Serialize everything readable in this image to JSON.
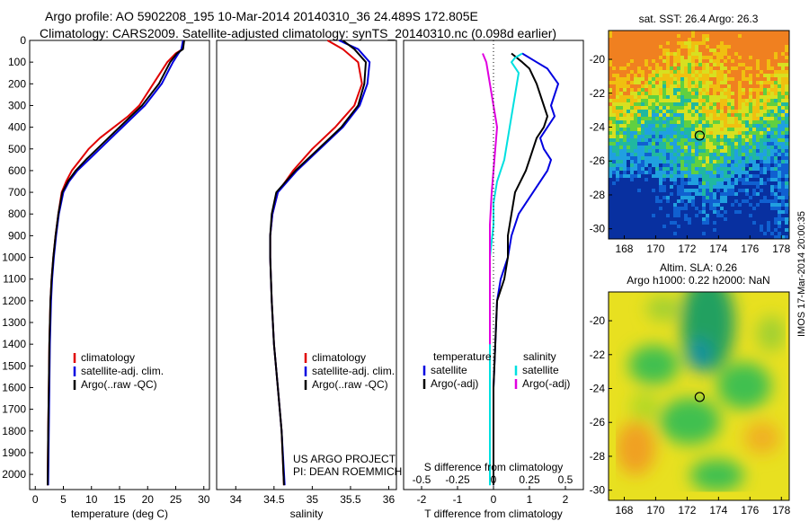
{
  "title_line1": "Argo profile: AO 5902208_195 10-Mar-2014 20140310_36 24.489S 172.805E",
  "title_line2": "Climatology: CARS2009. Satellite-adjusted climatology: synTS_20140310.nc (0.098d earlier)",
  "project_line1": "US ARGO PROJECT",
  "project_line2": "PI: DEAN ROEMMICH",
  "vertical_stamp": "IMOS 17-Mar-2014 20:00:35",
  "colors": {
    "climatology": "#e00000",
    "satellite": "#0000e0",
    "argo": "#000000",
    "sat_salinity": "#00e0e0",
    "argo_salinity": "#e000e0"
  },
  "chart_data": [
    {
      "id": "temperature",
      "type": "line",
      "xlabel": "temperature (deg C)",
      "ylabel": "",
      "xlim": [
        -1,
        31
      ],
      "ylim": [
        2070,
        0
      ],
      "xticks": [
        0,
        5,
        10,
        15,
        20,
        25,
        30
      ],
      "yticks": [
        0,
        100,
        200,
        300,
        400,
        500,
        600,
        700,
        800,
        900,
        1000,
        1100,
        1200,
        1300,
        1400,
        1500,
        1600,
        1700,
        1800,
        1900,
        2000
      ],
      "grid": false,
      "legend_position": "lower-center",
      "legend": [
        "climatology",
        "satellite-adj. clim.",
        "Argo(..raw -QC)"
      ],
      "series": [
        {
          "name": "climatology",
          "color": "#e00000",
          "x": [
            26.4,
            26.2,
            25.0,
            23.5,
            21.0,
            18.5,
            16.5,
            14.0,
            11.5,
            9.5,
            8.0,
            6.5,
            5.5,
            4.7,
            4.1,
            3.6,
            3.2,
            2.9,
            2.7,
            2.5,
            2.4,
            2.3,
            2.2
          ],
          "y": [
            0,
            40,
            60,
            100,
            200,
            300,
            350,
            400,
            450,
            500,
            550,
            600,
            650,
            700,
            800,
            900,
            1000,
            1100,
            1200,
            1400,
            1600,
            1800,
            2050
          ]
        },
        {
          "name": "satellite-adj. clim.",
          "color": "#0000e0",
          "x": [
            26.3,
            26.0,
            25.5,
            24.5,
            22.5,
            19.5,
            17.5,
            15.5,
            13.5,
            11.5,
            9.5,
            7.5,
            6.0,
            5.0,
            4.2,
            3.7,
            3.3,
            3.0,
            2.8,
            2.6,
            2.5,
            2.4,
            2.3
          ],
          "y": [
            0,
            40,
            60,
            100,
            200,
            300,
            350,
            400,
            450,
            500,
            550,
            600,
            650,
            700,
            800,
            900,
            1000,
            1100,
            1200,
            1400,
            1600,
            1800,
            2050
          ]
        },
        {
          "name": "Argo(..raw -QC)",
          "color": "#000000",
          "x": [
            26.5,
            26.3,
            25.2,
            24.0,
            22.0,
            19.0,
            17.0,
            15.0,
            13.0,
            11.0,
            9.0,
            7.2,
            5.8,
            4.8,
            4.1,
            3.6,
            3.2,
            2.9,
            2.7,
            2.5,
            2.4,
            2.3,
            2.2
          ],
          "y": [
            0,
            40,
            60,
            100,
            200,
            300,
            350,
            400,
            450,
            500,
            550,
            600,
            650,
            700,
            800,
            900,
            1000,
            1100,
            1200,
            1400,
            1600,
            1800,
            2050
          ]
        }
      ]
    },
    {
      "id": "salinity",
      "type": "line",
      "xlabel": "salinity",
      "ylabel": "",
      "xlim": [
        33.75,
        36.1
      ],
      "ylim": [
        2070,
        0
      ],
      "xticks": [
        34,
        34.5,
        35,
        35.5,
        36
      ],
      "yticks": [],
      "grid": false,
      "legend_position": "lower-center",
      "legend": [
        "climatology",
        "satellite-adj. clim.",
        "Argo(..raw -QC)"
      ],
      "series": [
        {
          "name": "climatology",
          "color": "#e00000",
          "x": [
            35.2,
            35.4,
            35.6,
            35.65,
            35.55,
            35.3,
            35.0,
            34.75,
            34.55,
            34.48,
            34.45,
            34.45,
            34.47,
            34.5,
            34.55,
            34.6,
            34.63
          ],
          "y": [
            0,
            40,
            100,
            200,
            300,
            400,
            500,
            600,
            700,
            800,
            900,
            1000,
            1200,
            1400,
            1600,
            1800,
            2050
          ]
        },
        {
          "name": "satellite-adj. clim.",
          "color": "#0000e0",
          "x": [
            35.35,
            35.6,
            35.75,
            35.72,
            35.62,
            35.4,
            35.1,
            34.8,
            34.55,
            34.48,
            34.45,
            34.45,
            34.47,
            34.5,
            34.55,
            34.6,
            34.64
          ],
          "y": [
            0,
            40,
            100,
            200,
            300,
            400,
            500,
            600,
            700,
            800,
            900,
            1000,
            1200,
            1400,
            1600,
            1800,
            2050
          ]
        },
        {
          "name": "Argo(..raw -QC)",
          "color": "#000000",
          "x": [
            35.4,
            35.55,
            35.7,
            35.68,
            35.6,
            35.38,
            35.08,
            34.78,
            34.53,
            34.47,
            34.45,
            34.45,
            34.47,
            34.5,
            34.55,
            34.6,
            34.63
          ],
          "y": [
            0,
            40,
            100,
            200,
            300,
            400,
            500,
            600,
            700,
            800,
            900,
            1000,
            1200,
            1400,
            1600,
            1800,
            2050
          ]
        }
      ]
    },
    {
      "id": "difference",
      "type": "line",
      "xlabel": "T difference from climatology",
      "xlabel_top": "S difference from climatology",
      "ylabel": "",
      "xlim": [
        -2.5,
        2.5
      ],
      "ylim": [
        2070,
        0
      ],
      "xticks": [
        -2,
        -1,
        0,
        1,
        2
      ],
      "xticks_top": [
        "-0.5",
        "-0.25",
        "0",
        "0.25",
        "0.5"
      ],
      "yticks": [],
      "grid": false,
      "legend_position": "lower-center",
      "legend_headers": [
        "temperature",
        "salinity"
      ],
      "legend": [
        "satellite",
        "Argo(-adj)",
        "satellite",
        "Argo(-adj)"
      ],
      "series": [
        {
          "name": "satellite",
          "group": "temperature",
          "color": "#0000e0",
          "x": [
            0.8,
            1.2,
            1.5,
            1.8,
            1.6,
            1.7,
            1.5,
            1.3,
            1.4,
            1.6,
            1.5,
            1.1,
            0.7,
            0.5,
            0.4,
            0.2,
            0.1,
            0.05,
            0.0,
            0.0
          ],
          "y": [
            60,
            100,
            130,
            200,
            300,
            350,
            400,
            450,
            500,
            550,
            600,
            700,
            800,
            900,
            1000,
            1100,
            1200,
            1400,
            1600,
            2050
          ]
        },
        {
          "name": "Argo(-adj)",
          "group": "temperature",
          "color": "#000000",
          "x": [
            0.5,
            0.8,
            1.0,
            1.2,
            1.4,
            1.5,
            1.4,
            1.2,
            1.1,
            1.0,
            0.9,
            0.6,
            0.5,
            0.4,
            0.4,
            0.3,
            0.1,
            0.05,
            0.0,
            0.0
          ],
          "y": [
            60,
            100,
            130,
            200,
            300,
            350,
            400,
            450,
            500,
            550,
            600,
            700,
            800,
            900,
            1000,
            1100,
            1200,
            1400,
            1600,
            2050
          ]
        },
        {
          "name": "satellite",
          "group": "salinity",
          "color": "#00e0e0",
          "x": [
            0.8,
            0.6,
            0.5,
            0.7,
            0.6,
            0.5,
            0.4,
            0.3,
            0.1,
            0.0,
            0.0,
            -0.1,
            -0.1,
            -0.1,
            -0.1
          ],
          "y": [
            60,
            80,
            100,
            150,
            250,
            350,
            450,
            550,
            650,
            750,
            850,
            1000,
            1200,
            1600,
            2050
          ]
        },
        {
          "name": "Argo(-adj)",
          "group": "salinity",
          "color": "#e000e0",
          "x": [
            -0.3,
            -0.2,
            -0.1,
            0.0,
            0.1,
            0.05,
            0.0,
            -0.05,
            -0.1,
            -0.1,
            -0.1,
            -0.1
          ],
          "y": [
            60,
            100,
            200,
            300,
            400,
            500,
            600,
            700,
            850,
            1000,
            1200,
            1400
          ]
        }
      ]
    },
    {
      "id": "sst_map",
      "type": "heatmap",
      "title": "sat. SST: 26.4  Argo: 26.3",
      "xticks": [
        168,
        170,
        172,
        174,
        176,
        178
      ],
      "yticks": [
        -20,
        -22,
        -24,
        -26,
        -28,
        -30
      ],
      "xlim": [
        167,
        178.5
      ],
      "ylim": [
        -30.6,
        -18.3
      ],
      "marker": {
        "x": 172.8,
        "y": -24.5
      }
    },
    {
      "id": "sla_map",
      "type": "heatmap",
      "title": "Altim. SLA: 0.26",
      "subtitle": "Argo h1000: 0.22 h2000: NaN",
      "xticks": [
        168,
        170,
        172,
        174,
        176,
        178
      ],
      "yticks": [
        -20,
        -22,
        -24,
        -26,
        -28,
        -30
      ],
      "xlim": [
        167,
        178.5
      ],
      "ylim": [
        -30.6,
        -18.3
      ],
      "marker": {
        "x": 172.8,
        "y": -24.5
      }
    }
  ]
}
